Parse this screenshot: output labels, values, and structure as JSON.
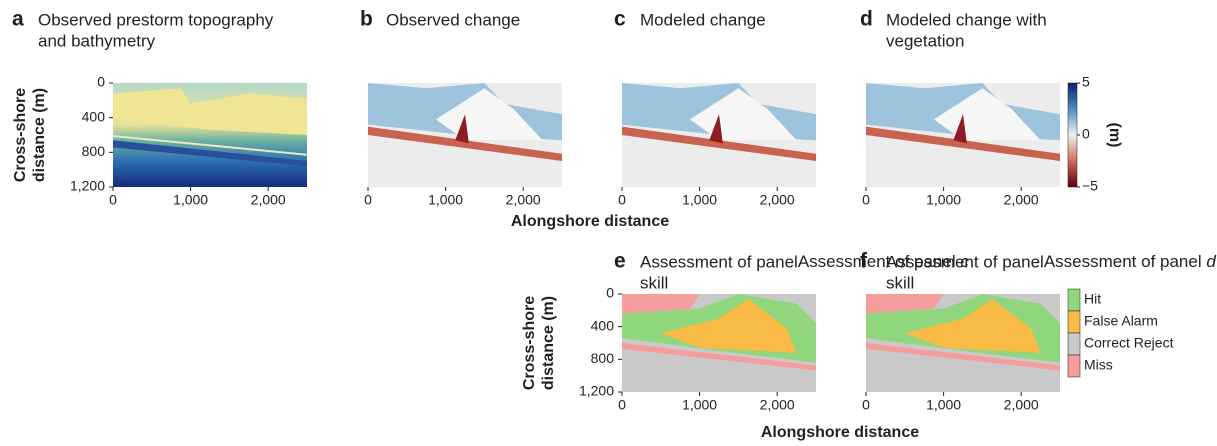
{
  "chart_data": [
    {
      "type": "heatmap",
      "letter": "a",
      "title_lines": [
        "Observed prestorm topography",
        "and bathymetry"
      ],
      "xlim": [
        0,
        2500
      ],
      "ylim": [
        0,
        1200
      ],
      "xticks": [
        0,
        {
          "value": 1000,
          "label": "1,000"
        },
        {
          "value": 2000,
          "label": "2,000"
        }
      ],
      "yticks": [
        0,
        400,
        800,
        {
          "value": 1200,
          "label": "1,200"
        }
      ],
      "ylabel_lines": [
        "Cross-shore",
        "distance (m)"
      ]
    },
    {
      "type": "heatmap",
      "letter": "b",
      "title_lines": [
        "Observed change"
      ],
      "xlim": [
        0,
        2500
      ],
      "ylim": [
        0,
        1200
      ],
      "xticks": [
        0,
        {
          "value": 1000,
          "label": "1,000"
        },
        {
          "value": 2000,
          "label": "2,000"
        }
      ],
      "xlabel": "Alongshore distance"
    },
    {
      "type": "heatmap",
      "letter": "c",
      "title_lines": [
        "Modeled change"
      ],
      "xlim": [
        0,
        2500
      ],
      "ylim": [
        0,
        1200
      ],
      "xticks": [
        0,
        {
          "value": 1000,
          "label": "1,000"
        },
        {
          "value": 2000,
          "label": "2,000"
        }
      ]
    },
    {
      "type": "heatmap",
      "letter": "d",
      "title_lines": [
        "Modeled change with",
        "vegetation"
      ],
      "xlim": [
        0,
        2500
      ],
      "ylim": [
        0,
        1200
      ],
      "xticks": [
        0,
        {
          "value": 1000,
          "label": "1,000"
        },
        {
          "value": 2000,
          "label": "2,000"
        }
      ],
      "colorbar": {
        "label": "(m)",
        "lim": [
          -5,
          5
        ],
        "ticks": [
          5,
          0,
          {
            "value": -5,
            "label": "−5"
          }
        ]
      }
    },
    {
      "type": "heatmap",
      "letter": "e",
      "title_lines": [
        "Assessment of panel",
        "skill"
      ],
      "title_ref": "c",
      "xlim": [
        0,
        2500
      ],
      "ylim": [
        0,
        1200
      ],
      "xticks": [
        0,
        {
          "value": 1000,
          "label": "1,000"
        },
        {
          "value": 2000,
          "label": "2,000"
        }
      ],
      "yticks": [
        0,
        400,
        800,
        {
          "value": 1200,
          "label": "1,200"
        }
      ],
      "ylabel_lines": [
        "Cross-shore",
        "distance (m)"
      ],
      "xlabel": "Alongshore distance"
    },
    {
      "type": "heatmap",
      "letter": "f",
      "title_lines": [
        "Assessment of panel",
        "skill"
      ],
      "title_ref": "d",
      "xlim": [
        0,
        2500
      ],
      "ylim": [
        0,
        1200
      ],
      "xticks": [
        0,
        {
          "value": 1000,
          "label": "1,000"
        },
        {
          "value": 2000,
          "label": "2,000"
        }
      ],
      "legend": [
        {
          "name": "Hit",
          "color": "#8fd67c"
        },
        {
          "name": "False Alarm",
          "color": "#f8bb45"
        },
        {
          "name": "Correct Reject",
          "color": "#c9c9c9"
        },
        {
          "name": "Miss",
          "color": "#f59c9c"
        }
      ]
    }
  ]
}
